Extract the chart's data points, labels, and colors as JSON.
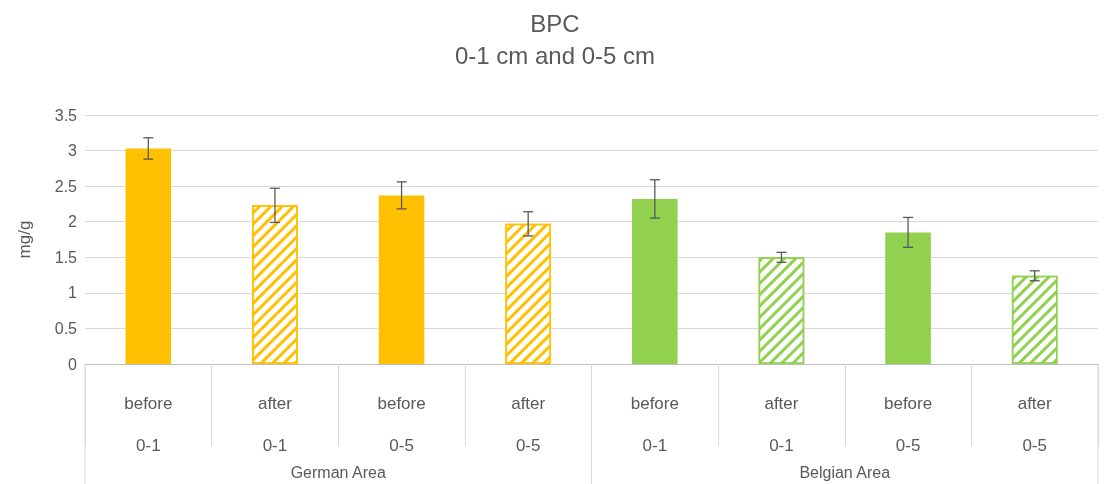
{
  "chart_data": {
    "type": "bar",
    "title": "BPC",
    "subtitle": "0-1 cm and 0-5 cm",
    "ylabel": "mg/g",
    "categories": [
      "before\n0-1",
      "after\n0-1",
      "before\n0-5",
      "after\n0-5",
      "before\n0-1",
      "after\n0-1",
      "before\n0-5",
      "after\n0-5"
    ],
    "stacked": true,
    "series": [
      {
        "values": [
          3.03,
          null,
          2.37,
          null,
          2.32,
          null,
          1.85,
          null
        ],
        "colors": [
          "#ffc000",
          null,
          "#ffc000",
          null,
          "#92d050",
          null,
          "#92d050",
          null
        ],
        "errors": [
          0.15,
          null,
          0.19,
          null,
          0.27,
          null,
          0.21,
          null
        ]
      },
      {
        "values": [
          null,
          2.23,
          null,
          1.97,
          null,
          1.5,
          null,
          1.24
        ],
        "colors": [
          null,
          "#ffc000",
          null,
          "#ffc000",
          null,
          "#92d050",
          null,
          "#92d050"
        ],
        "errors": [
          null,
          0.24,
          null,
          0.17,
          null,
          0.07,
          null,
          0.07
        ]
      }
    ],
    "ylim": [
      0,
      3.5
    ],
    "yticks": [
      0,
      0.5,
      1,
      1.5,
      2,
      2.5,
      3,
      3.5
    ],
    "grid": "y",
    "annotations": [
      "German Area",
      "Belgian Area"
    ]
  }
}
